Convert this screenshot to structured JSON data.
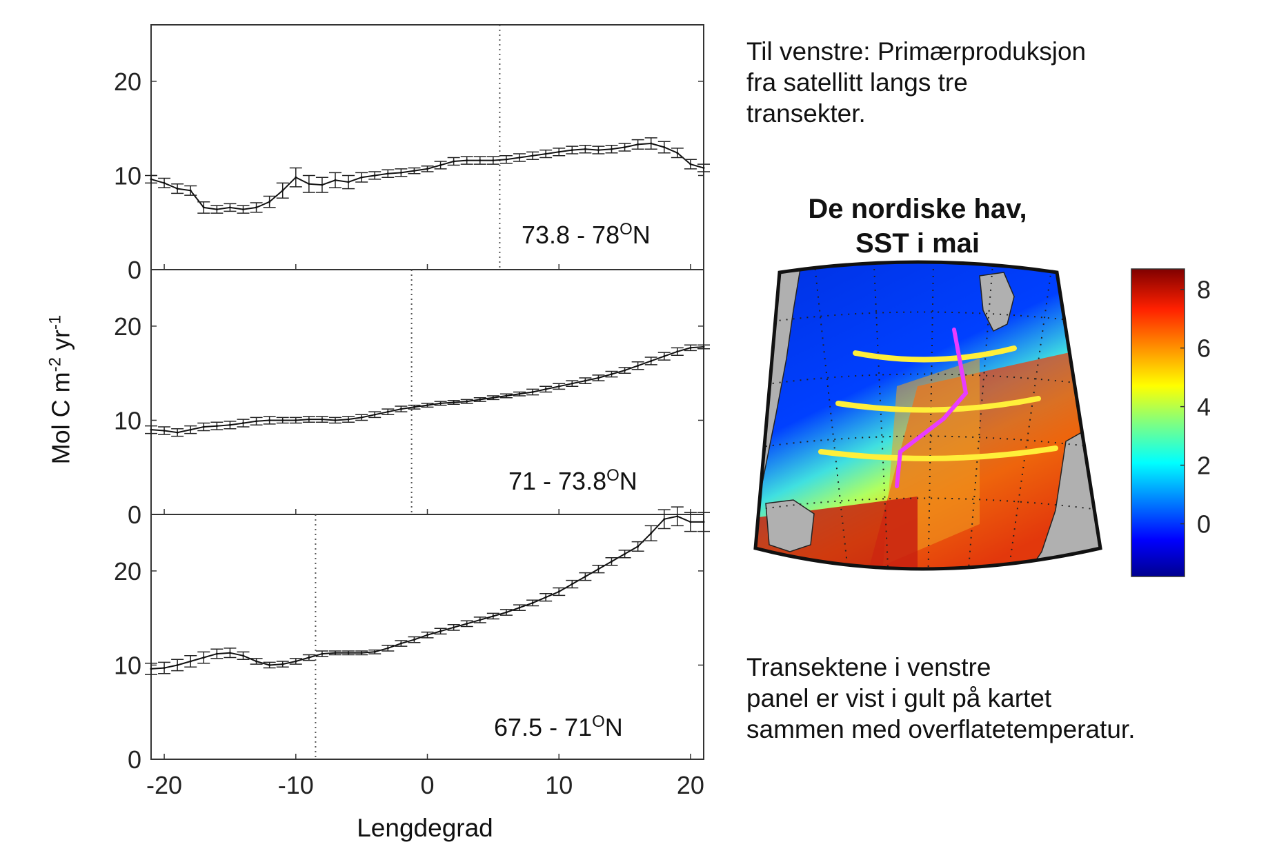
{
  "chart_data": [
    {
      "type": "line",
      "panel": "top",
      "annotation": "73.8 - 78°N",
      "annotation_main": "73.8 - 78",
      "annotation_sup": "O",
      "annotation_suffix": "N",
      "xlim": [
        -21,
        21
      ],
      "ylim": [
        0,
        26
      ],
      "yticks": [
        0,
        10,
        20
      ],
      "xticks": [
        -20,
        -10,
        0,
        10,
        20
      ],
      "vline_x": 5.5,
      "x": [
        -21,
        -20,
        -19,
        -18,
        -17,
        -16,
        -15,
        -14,
        -13,
        -12,
        -11,
        -10,
        -9,
        -8,
        -7,
        -6,
        -5,
        -4,
        -3,
        -2,
        -1,
        0,
        1,
        2,
        3,
        4,
        5,
        6,
        7,
        8,
        9,
        10,
        11,
        12,
        13,
        14,
        15,
        16,
        17,
        18,
        19,
        20,
        21
      ],
      "y": [
        9.6,
        9.2,
        8.6,
        8.4,
        6.6,
        6.4,
        6.6,
        6.4,
        6.6,
        7.2,
        8.4,
        9.8,
        9.1,
        9.0,
        9.5,
        9.3,
        9.8,
        10.0,
        10.2,
        10.3,
        10.5,
        10.7,
        11.1,
        11.5,
        11.6,
        11.6,
        11.6,
        11.7,
        11.9,
        12.1,
        12.3,
        12.5,
        12.7,
        12.8,
        12.7,
        12.8,
        13.0,
        13.3,
        13.4,
        13.0,
        12.4,
        11.2,
        10.8
      ],
      "err": [
        0.4,
        0.5,
        0.5,
        0.5,
        0.6,
        0.4,
        0.4,
        0.4,
        0.5,
        0.6,
        0.8,
        1.0,
        0.9,
        0.8,
        0.8,
        0.7,
        0.5,
        0.4,
        0.4,
        0.4,
        0.3,
        0.3,
        0.4,
        0.4,
        0.4,
        0.4,
        0.4,
        0.4,
        0.4,
        0.4,
        0.4,
        0.4,
        0.4,
        0.4,
        0.4,
        0.4,
        0.4,
        0.5,
        0.6,
        0.6,
        0.5,
        0.5,
        0.4
      ]
    },
    {
      "type": "line",
      "panel": "middle",
      "annotation": "71 - 73.8°N",
      "annotation_main": "71 - 73.8",
      "annotation_sup": "O",
      "annotation_suffix": "N",
      "xlim": [
        -21,
        21
      ],
      "ylim": [
        0,
        26
      ],
      "yticks": [
        0,
        10,
        20
      ],
      "xticks": [
        -20,
        -10,
        0,
        10,
        20
      ],
      "vline_x": -1.2,
      "x": [
        -21,
        -20,
        -19,
        -18,
        -17,
        -16,
        -15,
        -14,
        -13,
        -12,
        -11,
        -10,
        -9,
        -8,
        -7,
        -6,
        -5,
        -4,
        -3,
        -2,
        -1,
        0,
        1,
        2,
        3,
        4,
        5,
        6,
        7,
        8,
        9,
        10,
        11,
        12,
        13,
        14,
        15,
        16,
        17,
        18,
        19,
        20,
        21
      ],
      "y": [
        9.0,
        8.9,
        8.7,
        9.0,
        9.3,
        9.4,
        9.5,
        9.7,
        9.9,
        10.0,
        10.0,
        10.0,
        10.1,
        10.1,
        10.0,
        10.1,
        10.3,
        10.6,
        10.9,
        11.2,
        11.4,
        11.6,
        11.8,
        11.9,
        12.0,
        12.2,
        12.4,
        12.6,
        12.8,
        13.0,
        13.3,
        13.6,
        13.9,
        14.2,
        14.5,
        14.9,
        15.3,
        15.8,
        16.3,
        16.8,
        17.3,
        17.7,
        17.8
      ],
      "err": [
        0.4,
        0.4,
        0.4,
        0.4,
        0.4,
        0.4,
        0.4,
        0.4,
        0.4,
        0.4,
        0.3,
        0.3,
        0.3,
        0.3,
        0.3,
        0.3,
        0.3,
        0.3,
        0.3,
        0.3,
        0.2,
        0.2,
        0.2,
        0.2,
        0.2,
        0.2,
        0.2,
        0.2,
        0.2,
        0.3,
        0.3,
        0.3,
        0.3,
        0.3,
        0.3,
        0.3,
        0.3,
        0.4,
        0.4,
        0.4,
        0.4,
        0.3,
        0.2
      ]
    },
    {
      "type": "line",
      "panel": "bottom",
      "annotation": "67.5 - 71°N",
      "annotation_main": "67.5 - 71",
      "annotation_sup": "O",
      "annotation_suffix": "N",
      "xlim": [
        -21,
        21
      ],
      "ylim": [
        0,
        26
      ],
      "yticks": [
        0,
        10,
        20
      ],
      "xticks": [
        -20,
        -10,
        0,
        10,
        20
      ],
      "vline_x": -8.5,
      "x": [
        -21,
        -20,
        -19,
        -18,
        -17,
        -16,
        -15,
        -14,
        -13,
        -12,
        -11,
        -10,
        -9,
        -8,
        -7,
        -6,
        -5,
        -4,
        -3,
        -2,
        -1,
        0,
        1,
        2,
        3,
        4,
        5,
        6,
        7,
        8,
        9,
        10,
        11,
        12,
        13,
        14,
        15,
        16,
        17,
        18,
        19,
        20,
        21
      ],
      "y": [
        9.6,
        9.7,
        10.0,
        10.4,
        10.8,
        11.2,
        11.3,
        11.0,
        10.4,
        10.0,
        10.1,
        10.4,
        10.8,
        11.2,
        11.3,
        11.3,
        11.3,
        11.4,
        11.8,
        12.3,
        12.7,
        13.2,
        13.6,
        14.0,
        14.4,
        14.8,
        15.2,
        15.6,
        16.1,
        16.6,
        17.2,
        17.8,
        18.6,
        19.4,
        20.2,
        21.0,
        21.8,
        22.6,
        24.0,
        25.5,
        25.8,
        25.2,
        25.2
      ],
      "err": [
        0.6,
        0.6,
        0.6,
        0.6,
        0.6,
        0.5,
        0.5,
        0.4,
        0.3,
        0.3,
        0.3,
        0.3,
        0.3,
        0.3,
        0.2,
        0.2,
        0.2,
        0.2,
        0.3,
        0.3,
        0.3,
        0.3,
        0.3,
        0.3,
        0.3,
        0.3,
        0.3,
        0.3,
        0.3,
        0.3,
        0.4,
        0.4,
        0.4,
        0.4,
        0.4,
        0.4,
        0.4,
        0.5,
        0.8,
        1.0,
        1.0,
        1.0,
        1.0
      ]
    }
  ],
  "axes": {
    "ylabel_main": "Mol C m",
    "ylabel_sup1": "-2",
    "ylabel_mid": " yr",
    "ylabel_sup2": "-1",
    "xlabel": "Lengdegrad"
  },
  "map": {
    "title_line1": "De nordiske hav,",
    "title_line2": "SST i mai",
    "colorbar_ticks": [
      0,
      2,
      4,
      6,
      8
    ],
    "colorbar_range": [
      -1.8,
      8.7
    ],
    "transect_color": "#ffef3a",
    "front_color": "#e83cff",
    "land_color": "#b0b0b0"
  },
  "text": {
    "top": [
      "Til venstre: Primærproduksjon",
      "fra satellitt langs tre",
      "transekter."
    ],
    "bottom": [
      "Transektene i venstre",
      "panel er vist i gult på kartet",
      "sammen med overflatetemperatur."
    ]
  }
}
